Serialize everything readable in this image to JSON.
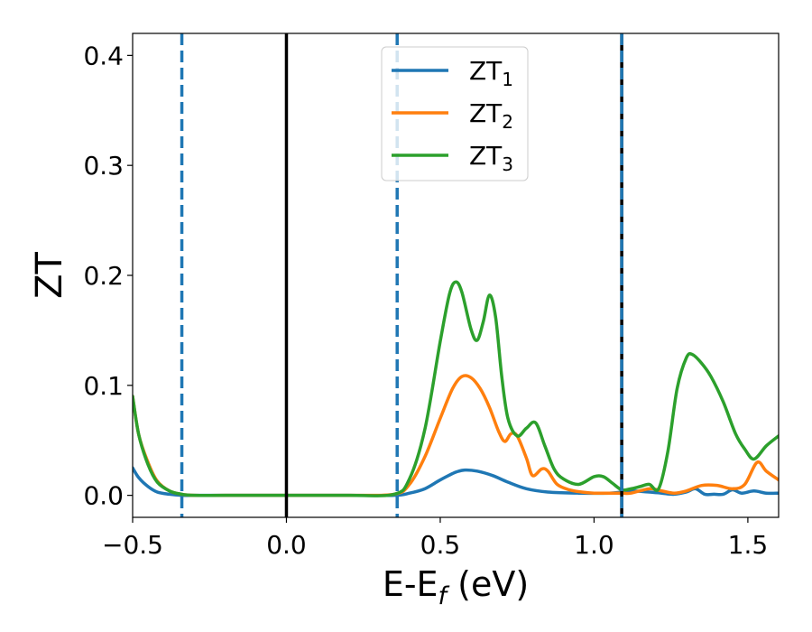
{
  "chart_data": {
    "type": "line",
    "title": "",
    "xlabel": {
      "main": "E-E",
      "sub": "f",
      "unit": " (eV)"
    },
    "ylabel": "ZT",
    "xlim": [
      -0.5,
      1.6
    ],
    "ylim": [
      -0.02,
      0.42
    ],
    "xticks": [
      -0.5,
      0.0,
      0.5,
      1.0,
      1.5
    ],
    "xtick_labels": [
      "−0.5",
      "0.0",
      "0.5",
      "1.0",
      "1.5"
    ],
    "yticks": [
      0.0,
      0.1,
      0.2,
      0.3,
      0.4
    ],
    "ytick_labels": [
      "0.0",
      "0.1",
      "0.2",
      "0.3",
      "0.4"
    ],
    "grid": false,
    "legend_position": "top-center",
    "vertical_lines": [
      {
        "x": -0.34,
        "style": "dashed",
        "color": "#1f77b4"
      },
      {
        "x": 0.0,
        "style": "solid",
        "color": "#000000"
      },
      {
        "x": 0.36,
        "style": "dashed",
        "color": "#1f77b4"
      },
      {
        "x": 1.09,
        "style": "solid",
        "color": "#000000"
      },
      {
        "x": 1.09,
        "style": "dashed",
        "color": "#1f77b4"
      }
    ],
    "series": [
      {
        "name": "ZT",
        "sub": "1",
        "color": "#1f77b4",
        "x": [
          -0.5,
          -0.48,
          -0.45,
          -0.42,
          -0.38,
          -0.34,
          -0.3,
          -0.2,
          0.0,
          0.2,
          0.35,
          0.4,
          0.45,
          0.5,
          0.55,
          0.58,
          0.62,
          0.67,
          0.72,
          0.78,
          0.85,
          0.95,
          1.05,
          1.09,
          1.12,
          1.18,
          1.22,
          1.26,
          1.3,
          1.33,
          1.36,
          1.39,
          1.42,
          1.45,
          1.48,
          1.52,
          1.56,
          1.6
        ],
        "y": [
          0.025,
          0.016,
          0.008,
          0.003,
          0.001,
          0.0,
          0.0,
          0.0,
          0.0,
          0.0,
          0.0,
          0.002,
          0.006,
          0.014,
          0.021,
          0.023,
          0.022,
          0.018,
          0.012,
          0.006,
          0.003,
          0.002,
          0.002,
          0.003,
          0.004,
          0.003,
          0.002,
          0.001,
          0.003,
          0.006,
          0.001,
          0.001,
          0.001,
          0.005,
          0.002,
          0.004,
          0.002,
          0.002
        ]
      },
      {
        "name": "ZT",
        "sub": "2",
        "color": "#ff7f0e",
        "x": [
          -0.5,
          -0.48,
          -0.45,
          -0.42,
          -0.38,
          -0.34,
          -0.3,
          -0.2,
          0.0,
          0.2,
          0.35,
          0.4,
          0.45,
          0.5,
          0.54,
          0.57,
          0.6,
          0.63,
          0.66,
          0.69,
          0.71,
          0.73,
          0.75,
          0.78,
          0.8,
          0.83,
          0.85,
          0.88,
          0.92,
          0.96,
          1.0,
          1.05,
          1.09,
          1.12,
          1.18,
          1.22,
          1.26,
          1.3,
          1.35,
          1.4,
          1.45,
          1.49,
          1.53,
          1.56,
          1.6
        ],
        "y": [
          0.09,
          0.055,
          0.03,
          0.013,
          0.004,
          0.001,
          0.0,
          0.0,
          0.0,
          0.0,
          0.001,
          0.01,
          0.035,
          0.07,
          0.097,
          0.108,
          0.107,
          0.097,
          0.08,
          0.058,
          0.049,
          0.056,
          0.054,
          0.034,
          0.018,
          0.024,
          0.022,
          0.01,
          0.005,
          0.003,
          0.002,
          0.002,
          0.002,
          0.002,
          0.006,
          0.004,
          0.002,
          0.004,
          0.009,
          0.009,
          0.006,
          0.01,
          0.03,
          0.022,
          0.014
        ]
      },
      {
        "name": "ZT",
        "sub": "3",
        "color": "#2ca02c",
        "x": [
          -0.5,
          -0.48,
          -0.45,
          -0.42,
          -0.38,
          -0.34,
          -0.3,
          -0.2,
          0.0,
          0.2,
          0.35,
          0.4,
          0.45,
          0.5,
          0.53,
          0.55,
          0.57,
          0.6,
          0.62,
          0.64,
          0.66,
          0.68,
          0.7,
          0.72,
          0.75,
          0.78,
          0.81,
          0.84,
          0.87,
          0.9,
          0.95,
          1.0,
          1.03,
          1.06,
          1.09,
          1.12,
          1.15,
          1.18,
          1.21,
          1.24,
          1.27,
          1.3,
          1.32,
          1.35,
          1.38,
          1.42,
          1.46,
          1.49,
          1.52,
          1.56,
          1.6
        ],
        "y": [
          0.09,
          0.055,
          0.028,
          0.012,
          0.004,
          0.001,
          0.0,
          0.0,
          0.0,
          0.0,
          0.001,
          0.015,
          0.06,
          0.14,
          0.183,
          0.194,
          0.185,
          0.151,
          0.141,
          0.158,
          0.182,
          0.162,
          0.108,
          0.07,
          0.054,
          0.061,
          0.066,
          0.045,
          0.024,
          0.015,
          0.01,
          0.017,
          0.017,
          0.011,
          0.005,
          0.006,
          0.008,
          0.01,
          0.006,
          0.04,
          0.097,
          0.125,
          0.128,
          0.12,
          0.108,
          0.085,
          0.056,
          0.042,
          0.033,
          0.045,
          0.054
        ]
      }
    ]
  }
}
